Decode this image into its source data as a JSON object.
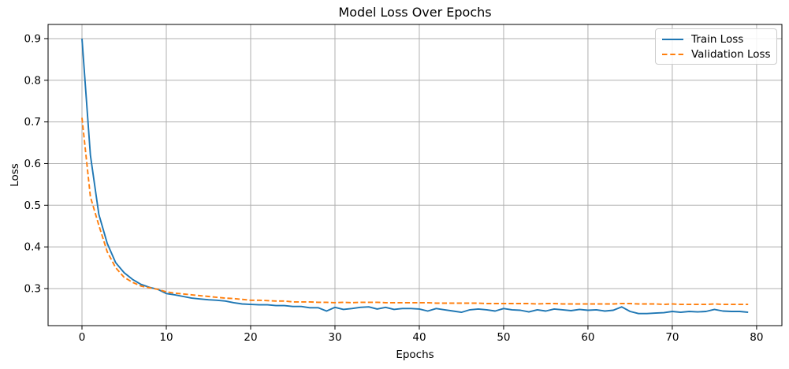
{
  "figure": {
    "background": "#ffffff"
  },
  "colors": {
    "train_line": "#1f77b4",
    "validation_line": "#ff7f0e",
    "grid": "#b0b0b0",
    "axis": "#000000",
    "text": "#000000",
    "legend_border": "#cccccc"
  },
  "legend": {
    "position": "upper right",
    "items": [
      {
        "label": "Train Loss",
        "color": "#1f77b4",
        "style": "solid"
      },
      {
        "label": "Validation Loss",
        "color": "#ff7f0e",
        "style": "dashed"
      }
    ]
  },
  "chart_data": {
    "type": "line",
    "title": "Model Loss Over Epochs",
    "xlabel": "Epochs",
    "ylabel": "Loss",
    "grid": true,
    "legend_position": "upper right",
    "xlim": [
      -4.02,
      83.0
    ],
    "ylim": [
      0.211,
      0.934
    ],
    "x_ticks": [
      0,
      10,
      20,
      30,
      40,
      50,
      60,
      70,
      80
    ],
    "y_ticks": [
      0.3,
      0.4,
      0.5,
      0.6,
      0.7,
      0.8,
      0.9
    ],
    "x_start": 0,
    "x_step": 1,
    "series": [
      {
        "name": "Train Loss",
        "color": "#1f77b4",
        "style": "solid",
        "values": [
          0.9,
          0.62,
          0.478,
          0.408,
          0.362,
          0.338,
          0.322,
          0.31,
          0.303,
          0.298,
          0.288,
          0.285,
          0.281,
          0.277,
          0.275,
          0.273,
          0.272,
          0.27,
          0.266,
          0.263,
          0.262,
          0.261,
          0.261,
          0.259,
          0.259,
          0.257,
          0.257,
          0.254,
          0.254,
          0.246,
          0.255,
          0.25,
          0.252,
          0.255,
          0.256,
          0.251,
          0.255,
          0.25,
          0.252,
          0.252,
          0.251,
          0.246,
          0.252,
          0.249,
          0.246,
          0.243,
          0.249,
          0.251,
          0.249,
          0.246,
          0.252,
          0.249,
          0.248,
          0.244,
          0.249,
          0.246,
          0.251,
          0.249,
          0.247,
          0.25,
          0.248,
          0.249,
          0.246,
          0.248,
          0.256,
          0.245,
          0.24,
          0.24,
          0.241,
          0.242,
          0.245,
          0.243,
          0.245,
          0.244,
          0.245,
          0.25,
          0.246,
          0.245,
          0.245,
          0.243
        ]
      },
      {
        "name": "Validation Loss",
        "color": "#ff7f0e",
        "style": "dashed",
        "values": [
          0.71,
          0.52,
          0.452,
          0.388,
          0.35,
          0.327,
          0.315,
          0.306,
          0.302,
          0.298,
          0.292,
          0.289,
          0.287,
          0.285,
          0.283,
          0.281,
          0.279,
          0.277,
          0.276,
          0.274,
          0.272,
          0.272,
          0.271,
          0.27,
          0.27,
          0.268,
          0.268,
          0.268,
          0.267,
          0.267,
          0.266,
          0.267,
          0.266,
          0.267,
          0.267,
          0.267,
          0.266,
          0.266,
          0.266,
          0.266,
          0.266,
          0.266,
          0.265,
          0.265,
          0.265,
          0.265,
          0.265,
          0.265,
          0.264,
          0.264,
          0.264,
          0.264,
          0.264,
          0.264,
          0.263,
          0.264,
          0.264,
          0.263,
          0.263,
          0.263,
          0.263,
          0.263,
          0.263,
          0.263,
          0.264,
          0.264,
          0.263,
          0.263,
          0.263,
          0.262,
          0.263,
          0.262,
          0.262,
          0.262,
          0.262,
          0.263,
          0.262,
          0.262,
          0.262,
          0.262
        ]
      }
    ]
  }
}
